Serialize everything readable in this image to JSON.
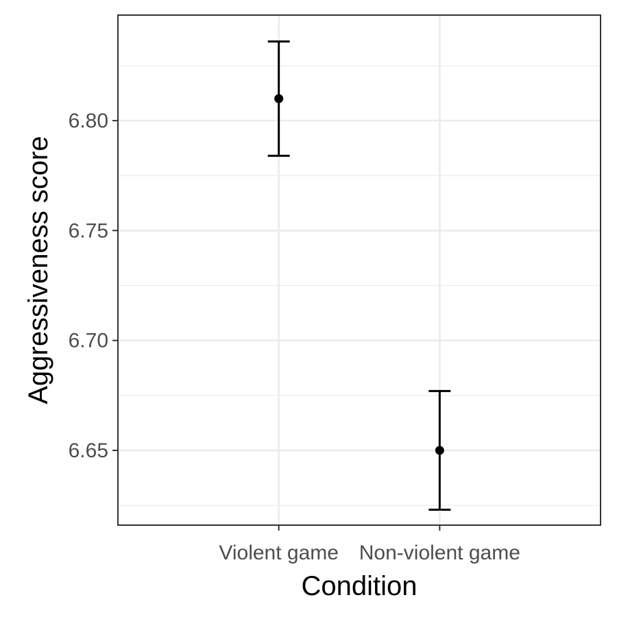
{
  "chart_data": {
    "type": "scatter",
    "title": "",
    "xlabel": "Condition",
    "ylabel": "Aggressiveness score",
    "categories": [
      "Violent game",
      "Non-violent game"
    ],
    "series": [
      {
        "values": [
          6.81,
          6.65
        ],
        "error_lower": [
          6.784,
          6.623
        ],
        "error_upper": [
          6.836,
          6.677
        ]
      }
    ],
    "ylim": [
      6.616,
      6.848
    ],
    "yticks": [
      6.65,
      6.7,
      6.75,
      6.8
    ],
    "ytick_labels": [
      "6.65",
      "6.70",
      "6.75",
      "6.80"
    ],
    "grid": true,
    "legend": "none",
    "colors": {
      "points": "#000000",
      "grid": "#ebebeb",
      "panel_border": "#333333",
      "tick_text": "#4d4d4d"
    }
  }
}
